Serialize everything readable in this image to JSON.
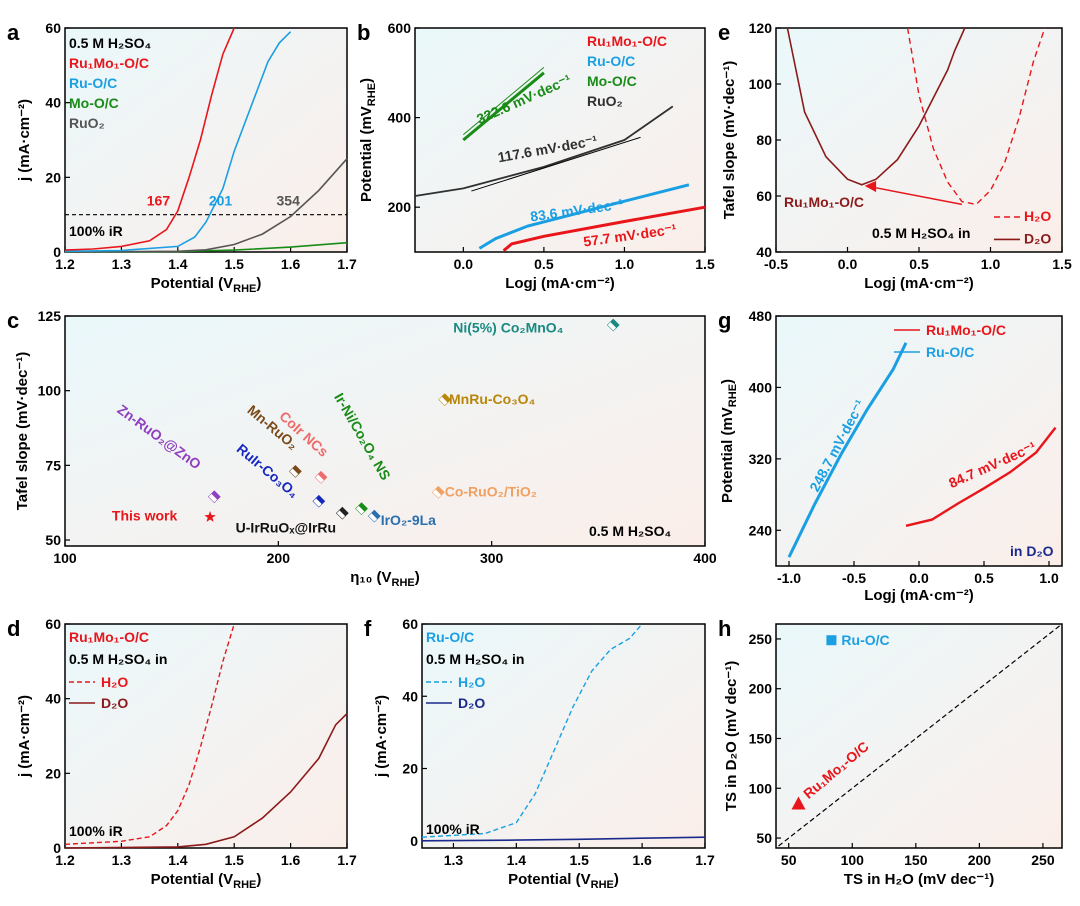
{
  "colors": {
    "red": "#e8161b",
    "blue": "#1a9fe3",
    "green": "#198b17",
    "black": "#303030",
    "gray": "#555555",
    "darkred": "#8b1a1a",
    "navy": "#1a2a8c",
    "teal": "#1a8a80",
    "purple": "#8f3fbf",
    "brown": "#7a4a1a",
    "pink": "#ef6b6b",
    "orange": "#f0a060",
    "gold": "#b8860b",
    "steel": "#2a6fae",
    "blue2": "#1628c0",
    "bgGrad": "#e8f7fb"
  },
  "chart_data": [
    {
      "id": "a",
      "panel_label": "a",
      "type": "line",
      "xlabel": "Potential (V",
      "xlabel_sub": "RHE",
      "xlabel_end": ")",
      "ylabel": "j (mA·cm⁻²)",
      "xlim": [
        1.2,
        1.7
      ],
      "ylim": [
        0,
        60
      ],
      "xticks": [
        "1.2",
        "1.3",
        "1.4",
        "1.5",
        "1.6",
        "1.7"
      ],
      "yticks": [
        "0",
        "20",
        "40",
        "60"
      ],
      "legend": [
        "0.5 M H₂SO₄",
        "Ru₁Mo₁-O/C",
        "Ru-O/C",
        "Mo-O/C",
        "RuO₂"
      ],
      "annotations": [
        "167",
        "201",
        "354",
        "100% iR"
      ],
      "series": [
        {
          "name": "Ru₁Mo₁-O/C",
          "x": [
            1.2,
            1.25,
            1.3,
            1.35,
            1.38,
            1.4,
            1.42,
            1.44,
            1.46,
            1.48,
            1.5
          ],
          "y": [
            0.5,
            0.8,
            1.5,
            3.0,
            6.0,
            11.0,
            20.0,
            30.0,
            42.0,
            53.0,
            60.0
          ]
        },
        {
          "name": "Ru-O/C",
          "x": [
            1.2,
            1.3,
            1.4,
            1.43,
            1.45,
            1.48,
            1.5,
            1.53,
            1.56,
            1.58,
            1.6
          ],
          "y": [
            0.2,
            0.4,
            1.5,
            4.0,
            8.0,
            17.0,
            27.0,
            39.0,
            51.0,
            56.0,
            59.0
          ]
        },
        {
          "name": "Mo-O/C",
          "x": [
            1.2,
            1.4,
            1.5,
            1.6,
            1.7
          ],
          "y": [
            0,
            0.1,
            0.5,
            1.3,
            2.5
          ]
        },
        {
          "name": "RuO₂",
          "x": [
            1.2,
            1.4,
            1.45,
            1.5,
            1.55,
            1.6,
            1.65,
            1.7
          ],
          "y": [
            0,
            0.2,
            0.6,
            2.0,
            4.8,
            9.5,
            16.5,
            25.0
          ]
        }
      ]
    },
    {
      "id": "b",
      "panel_label": "b",
      "type": "line",
      "xlabel": "Logj (mA·cm⁻²)",
      "ylabel": "Potential (mV",
      "ylabel_sub": "RHE",
      "ylabel_end": ")",
      "xlim": [
        -0.3,
        1.5
      ],
      "ylim": [
        100,
        600
      ],
      "xticks": [
        "0.0",
        "0.5",
        "1.0",
        "1.5"
      ],
      "yticks": [
        "200",
        "400",
        "600"
      ],
      "legend": [
        "Ru₁Mo₁-O/C",
        "Ru-O/C",
        "Mo-O/C",
        "RuO₂"
      ],
      "annotations": [
        "322.6 mV·dec⁻¹",
        "117.6 mV·dec⁻¹",
        "83.6 mV·dec⁻¹",
        "57.7 mV·dec⁻¹"
      ],
      "series": [
        {
          "name": "Ru₁Mo₁-O/C",
          "x": [
            0.25,
            0.3,
            0.5,
            1.0,
            1.5
          ],
          "y": [
            103,
            118,
            135,
            168,
            200
          ]
        },
        {
          "name": "Ru-O/C",
          "x": [
            0.1,
            0.2,
            0.4,
            0.8,
            1.4
          ],
          "y": [
            108,
            130,
            158,
            195,
            250
          ]
        },
        {
          "name": "Mo-O/C",
          "x": [
            0.0,
            0.5
          ],
          "y": [
            350,
            500
          ]
        },
        {
          "name": "RuO₂",
          "x": [
            -0.3,
            0.0,
            0.5,
            1.0,
            1.3
          ],
          "y": [
            225,
            242,
            290,
            350,
            425
          ]
        }
      ]
    },
    {
      "id": "e",
      "panel_label": "e",
      "type": "line",
      "xlabel": "Logj (mA·cm⁻²)",
      "ylabel": "Tafel slope (mV·dec⁻¹)",
      "xlim": [
        -0.5,
        1.5
      ],
      "ylim": [
        40,
        120
      ],
      "xticks": [
        "-0.5",
        "0.0",
        "0.5",
        "1.0",
        "1.5"
      ],
      "yticks": [
        "40",
        "60",
        "80",
        "100",
        "120"
      ],
      "legend": [
        "H₂O",
        "D₂O"
      ],
      "annotations": [
        "Ru₁Mo₁-O/C",
        "0.5 M H₂SO₄ in"
      ],
      "series": [
        {
          "name": "H₂O",
          "x": [
            0.42,
            0.5,
            0.6,
            0.7,
            0.8,
            0.9,
            1.0,
            1.1,
            1.2,
            1.3,
            1.38
          ],
          "y": [
            120,
            96,
            77,
            65,
            58,
            57,
            62,
            72,
            88,
            108,
            120
          ]
        },
        {
          "name": "D₂O",
          "x": [
            -0.42,
            -0.3,
            -0.15,
            0.0,
            0.1,
            0.2,
            0.35,
            0.5,
            0.6,
            0.7,
            0.75,
            0.82
          ],
          "y": [
            120,
            90,
            74,
            66,
            64,
            66,
            73,
            85,
            95,
            105,
            112,
            120
          ]
        }
      ]
    },
    {
      "id": "c",
      "panel_label": "c",
      "type": "scatter",
      "xlabel": "η₁₀ (V",
      "xlabel_sub": "RHE",
      "xlabel_end": ")",
      "ylabel": "Tafel slope (mV·dec⁻¹)",
      "xlim": [
        100,
        400
      ],
      "ylim": [
        48,
        125
      ],
      "xticks": [
        "100",
        "200",
        "300",
        "400"
      ],
      "yticks": [
        "50",
        "75",
        "100",
        "125"
      ],
      "annotations": [
        "0.5 M H₂SO₄"
      ],
      "points": [
        {
          "label": "This work",
          "x": 168,
          "y": 57.7
        },
        {
          "label": "Zn-RuO₂@ZnO",
          "x": 170,
          "y": 64.5
        },
        {
          "label": "Mn-RuO₂",
          "x": 208,
          "y": 73
        },
        {
          "label": "RuIr-Co₃O₄",
          "x": 219,
          "y": 63
        },
        {
          "label": "CoIr NCs",
          "x": 220,
          "y": 71
        },
        {
          "label": "U-IrRuOₓ@IrRu",
          "x": 230,
          "y": 59
        },
        {
          "label": "Ir-Ni/Co₂O₄ NS",
          "x": 239,
          "y": 60.5
        },
        {
          "label": "IrO₂-9La",
          "x": 245,
          "y": 58
        },
        {
          "label": "MnRu-Co₃O₄",
          "x": 278,
          "y": 97
        },
        {
          "label": "Co-RuO₂/TiO₂",
          "x": 275,
          "y": 66
        },
        {
          "label": "Ni(5%) Co₂MnO₄",
          "x": 357,
          "y": 122
        }
      ]
    },
    {
      "id": "g",
      "panel_label": "g",
      "type": "line",
      "xlabel": "Logj (mA·cm⁻²)",
      "ylabel": "Potential (mV",
      "ylabel_sub": "RHE",
      "ylabel_end": ")",
      "xlim": [
        -1.1,
        1.1
      ],
      "ylim": [
        200,
        480
      ],
      "xticks": [
        "-1.0",
        "-0.5",
        "0.0",
        "0.5",
        "1.0"
      ],
      "yticks": [
        "240",
        "320",
        "400",
        "480"
      ],
      "legend": [
        "Ru₁Mo₁-O/C",
        "Ru-O/C"
      ],
      "annotations": [
        "248.7 mV·dec⁻¹",
        "84.7 mV·dec⁻¹",
        "in D₂O"
      ],
      "series": [
        {
          "name": "Ru₁Mo₁-O/C",
          "x": [
            -0.1,
            0.1,
            0.3,
            0.5,
            0.7,
            0.9,
            1.05
          ],
          "y": [
            245,
            252,
            270,
            287,
            305,
            327,
            355
          ]
        },
        {
          "name": "Ru-O/C",
          "x": [
            -1.0,
            -0.9,
            -0.8,
            -0.6,
            -0.4,
            -0.2,
            -0.1
          ],
          "y": [
            210,
            240,
            270,
            325,
            375,
            420,
            450
          ]
        }
      ]
    },
    {
      "id": "d",
      "panel_label": "d",
      "type": "line",
      "xlabel": "Potential (V",
      "xlabel_sub": "RHE",
      "xlabel_end": ")",
      "ylabel": "j (mA·cm⁻²)",
      "xlim": [
        1.2,
        1.7
      ],
      "ylim": [
        0,
        60
      ],
      "xticks": [
        "1.2",
        "1.3",
        "1.4",
        "1.5",
        "1.6",
        "1.7"
      ],
      "yticks": [
        "0",
        "20",
        "40",
        "60"
      ],
      "legend": [
        "Ru₁Mo₁-O/C",
        "0.5 M H₂SO₄ in",
        "H₂O",
        "D₂O"
      ],
      "annotations": [
        "100% iR"
      ],
      "series": [
        {
          "name": "H₂O",
          "x": [
            1.2,
            1.3,
            1.35,
            1.38,
            1.4,
            1.42,
            1.44,
            1.46,
            1.48,
            1.5
          ],
          "y": [
            1.0,
            1.8,
            3.0,
            6.0,
            10.0,
            17.0,
            27.0,
            38.0,
            50.0,
            60.0
          ]
        },
        {
          "name": "D₂O",
          "x": [
            1.2,
            1.4,
            1.45,
            1.5,
            1.55,
            1.6,
            1.65,
            1.68,
            1.7
          ],
          "y": [
            0,
            0.3,
            1.0,
            3.0,
            8.0,
            15.0,
            24.0,
            33.0,
            36.0
          ]
        }
      ]
    },
    {
      "id": "f",
      "panel_label": "f",
      "type": "line",
      "xlabel": "Potential (V",
      "xlabel_sub": "RHE",
      "xlabel_end": ")",
      "ylabel": "j (mA·cm⁻²)",
      "xlim": [
        1.25,
        1.7
      ],
      "ylim": [
        -2,
        60
      ],
      "xticks": [
        "1.3",
        "1.4",
        "1.5",
        "1.6",
        "1.7"
      ],
      "yticks": [
        "0",
        "20",
        "40",
        "60"
      ],
      "legend": [
        "Ru-O/C",
        "0.5 M H₂SO₄ in",
        "H₂O",
        "D₂O"
      ],
      "annotations": [
        "100% iR"
      ],
      "series": [
        {
          "name": "H₂O",
          "x": [
            1.25,
            1.35,
            1.4,
            1.43,
            1.46,
            1.49,
            1.52,
            1.55,
            1.58,
            1.6
          ],
          "y": [
            1.0,
            2.0,
            5.0,
            13.0,
            25.0,
            37.0,
            47.0,
            53.0,
            56.0,
            60.0
          ]
        },
        {
          "name": "D₂O",
          "x": [
            1.25,
            1.4,
            1.5,
            1.6,
            1.7
          ],
          "y": [
            0,
            0.2,
            0.4,
            0.7,
            1.0
          ]
        }
      ]
    },
    {
      "id": "h",
      "panel_label": "h",
      "type": "scatter",
      "xlabel": "TS in H₂O (mV dec⁻¹)",
      "ylabel": "TS in D₂O (mV dec⁻¹)",
      "xlim": [
        40,
        265
      ],
      "ylim": [
        40,
        265
      ],
      "xticks": [
        "50",
        "100",
        "150",
        "200",
        "250"
      ],
      "yticks": [
        "50",
        "100",
        "150",
        "200",
        "250"
      ],
      "points": [
        {
          "label": "Ru-O/C",
          "x": 83.6,
          "y": 248.7
        },
        {
          "label": "Ru₁Mo₁-O/C",
          "x": 57.7,
          "y": 84.7
        }
      ]
    }
  ]
}
